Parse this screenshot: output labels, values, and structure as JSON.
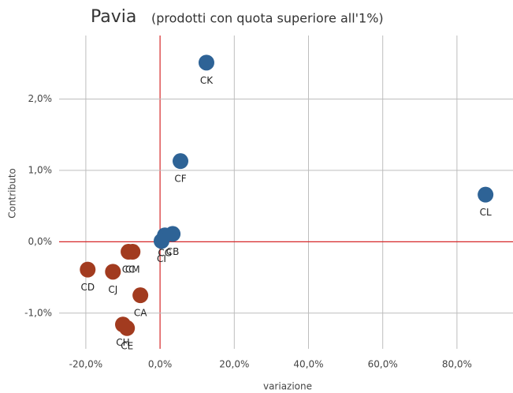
{
  "chart_data": {
    "type": "scatter",
    "title": "Pavia",
    "subtitle": "(prodotti con quota superiore all'1%)",
    "x_label": "variazione",
    "y_label": "Contributo",
    "points": [
      {
        "label": "CK",
        "x": 12.5,
        "y": 2.51,
        "color": "#2e6396"
      },
      {
        "label": "CF",
        "x": 5.5,
        "y": 1.13,
        "color": "#2e6396"
      },
      {
        "label": "CL",
        "x": 87.7,
        "y": 0.66,
        "color": "#2e6396"
      },
      {
        "label": "CB",
        "x": 3.4,
        "y": 0.11,
        "color": "#2e6396"
      },
      {
        "label": "CG",
        "x": 1.3,
        "y": 0.09,
        "color": "#2e6396"
      },
      {
        "label": "CI",
        "x": 0.4,
        "y": 0.01,
        "color": "#2e6396"
      },
      {
        "label": "CC",
        "x": -8.5,
        "y": -0.14,
        "color": "#a23b1f"
      },
      {
        "label": "CM",
        "x": -7.4,
        "y": -0.14,
        "color": "#a23b1f"
      },
      {
        "label": "CD",
        "x": -19.5,
        "y": -0.39,
        "color": "#a23b1f"
      },
      {
        "label": "CJ",
        "x": -12.7,
        "y": -0.42,
        "color": "#a23b1f"
      },
      {
        "label": "CA",
        "x": -5.3,
        "y": -0.75,
        "color": "#a23b1f"
      },
      {
        "label": "CH",
        "x": -10.0,
        "y": -1.16,
        "color": "#a23b1f"
      },
      {
        "label": "CE",
        "x": -8.9,
        "y": -1.21,
        "color": "#a23b1f"
      }
    ],
    "xlim": [
      -27.2,
      95.1
    ],
    "ylim": [
      -1.5,
      2.89
    ],
    "xticks": [
      {
        "value": -20,
        "label": "-20,0%"
      },
      {
        "value": 0,
        "label": "0,0%"
      },
      {
        "value": 20,
        "label": "20,0%"
      },
      {
        "value": 40,
        "label": "40,0%"
      },
      {
        "value": 60,
        "label": "60,0%"
      },
      {
        "value": 80,
        "label": "80,0%"
      }
    ],
    "yticks": [
      {
        "value": -1,
        "label": "-1,0%"
      },
      {
        "value": 0,
        "label": "0,0%"
      },
      {
        "value": 1,
        "label": "1,0%"
      },
      {
        "value": 2,
        "label": "2,0%"
      }
    ],
    "grid": true,
    "zero_line_color": "#d62728"
  }
}
